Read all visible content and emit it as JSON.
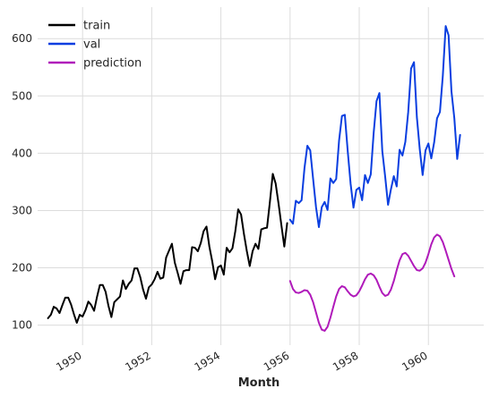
{
  "chart_data": {
    "type": "line",
    "title": "",
    "xlabel": "Month",
    "ylabel": "",
    "xlim": [
      1948.7,
      1961.6
    ],
    "ylim": [
      65,
      655
    ],
    "grid": true,
    "legend_position": "top-left",
    "x_ticks": [
      1950,
      1952,
      1954,
      1956,
      1958,
      1960
    ],
    "x_tick_labels": [
      "1950",
      "1952",
      "1954",
      "1956",
      "1958",
      "1960"
    ],
    "y_ticks": [
      100,
      200,
      300,
      400,
      500,
      600
    ],
    "y_tick_labels": [
      "100",
      "200",
      "300",
      "400",
      "500",
      "600"
    ],
    "series": [
      {
        "name": "train",
        "color": "#000000",
        "x_start": 1949.0,
        "x_step": 0.0833333,
        "values": [
          112,
          118,
          132,
          129,
          121,
          135,
          148,
          148,
          136,
          119,
          104,
          118,
          115,
          126,
          141,
          135,
          125,
          149,
          170,
          170,
          158,
          133,
          114,
          140,
          145,
          150,
          178,
          163,
          172,
          178,
          199,
          199,
          184,
          162,
          146,
          166,
          171,
          180,
          193,
          181,
          183,
          218,
          230,
          242,
          209,
          191,
          172,
          194,
          196,
          196,
          236,
          235,
          229,
          243,
          264,
          272,
          237,
          211,
          180,
          201,
          204,
          188,
          235,
          227,
          234,
          264,
          302,
          293,
          259,
          229,
          203,
          229,
          242,
          233,
          267,
          269,
          270,
          315,
          364,
          347,
          312,
          274,
          237,
          278
        ]
      },
      {
        "name": "val",
        "color": "#0a3ee0",
        "x_start": 1956.0,
        "x_step": 0.0833333,
        "values": [
          284,
          277,
          317,
          313,
          318,
          374,
          413,
          405,
          355,
          306,
          271,
          306,
          315,
          301,
          356,
          348,
          355,
          422,
          465,
          467,
          404,
          347,
          305,
          336,
          340,
          318,
          362,
          348,
          363,
          435,
          491,
          505,
          404,
          359,
          310,
          337,
          360,
          342,
          406,
          396,
          420,
          472,
          548,
          559,
          463,
          407,
          362,
          405,
          417,
          391,
          419,
          461,
          472,
          535,
          622,
          606,
          508,
          461,
          390,
          432
        ]
      },
      {
        "name": "prediction",
        "color": "#b01aba",
        "x_start": 1956.0,
        "x_step": 0.0833333,
        "values": [
          177,
          163,
          157,
          156,
          158,
          161,
          160,
          153,
          140,
          122,
          104,
          92,
          90,
          97,
          113,
          132,
          150,
          163,
          168,
          166,
          159,
          153,
          150,
          152,
          159,
          169,
          180,
          188,
          190,
          187,
          179,
          167,
          156,
          151,
          153,
          162,
          177,
          196,
          213,
          224,
          226,
          221,
          212,
          203,
          196,
          195,
          199,
          209,
          224,
          241,
          253,
          258,
          255,
          245,
          230,
          214,
          198,
          185
        ]
      }
    ]
  }
}
